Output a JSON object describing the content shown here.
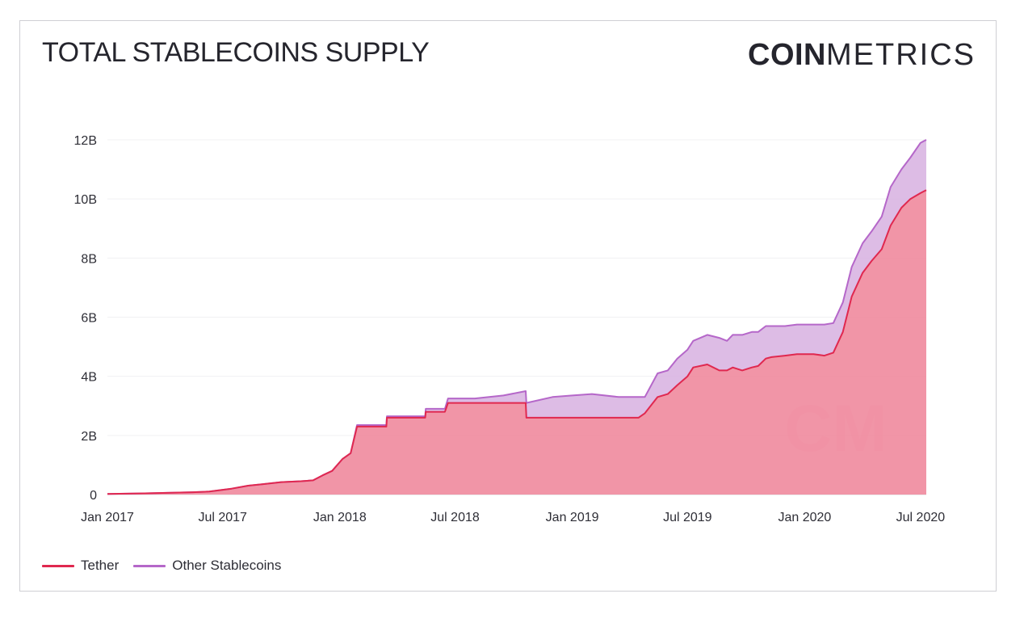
{
  "header": {
    "title": "TOTAL STABLECOINS SUPPLY",
    "brand_bold": "COIN",
    "brand_light": "METRICS",
    "watermark": "CM"
  },
  "colors": {
    "tether_line": "#e0284f",
    "tether_fill": "#f08ca0",
    "other_line": "#b567c9",
    "other_fill": "#d7b0e0",
    "grid": "#f0f0f3",
    "text": "#25252d"
  },
  "chart_data": {
    "type": "area",
    "stacked": true,
    "title": "TOTAL STABLECOINS SUPPLY",
    "xlabel": "",
    "ylabel": "",
    "xlim": [
      "2017-01-01",
      "2020-07-10"
    ],
    "ylim": [
      0,
      12000000000
    ],
    "grid": true,
    "legend_position": "bottom-left",
    "x_ticks": [
      "Jan 2017",
      "Jul 2017",
      "Jan 2018",
      "Jul 2018",
      "Jan 2019",
      "Jul 2019",
      "Jan 2020",
      "Jul 2020"
    ],
    "x_tick_dates": [
      "2017-01-01",
      "2017-07-01",
      "2018-01-01",
      "2018-07-01",
      "2019-01-01",
      "2019-07-01",
      "2020-01-01",
      "2020-07-01"
    ],
    "y_ticks": [
      0,
      2000000000,
      4000000000,
      6000000000,
      8000000000,
      10000000000,
      12000000000
    ],
    "y_tick_labels": [
      "0",
      "2B",
      "4B",
      "6B",
      "8B",
      "10B",
      "12B"
    ],
    "x": [
      "2017-01-01",
      "2017-03-01",
      "2017-05-15",
      "2017-06-10",
      "2017-07-15",
      "2017-08-10",
      "2017-09-01",
      "2017-10-01",
      "2017-11-01",
      "2017-11-20",
      "2017-12-05",
      "2017-12-20",
      "2018-01-05",
      "2018-01-18",
      "2018-01-28",
      "2018-02-15",
      "2018-03-15",
      "2018-03-16",
      "2018-05-15",
      "2018-05-16",
      "2018-06-15",
      "2018-06-20",
      "2018-08-01",
      "2018-09-15",
      "2018-10-20",
      "2018-10-21",
      "2018-12-01",
      "2019-01-01",
      "2019-02-01",
      "2019-03-15",
      "2019-04-01",
      "2019-04-15",
      "2019-04-25",
      "2019-05-15",
      "2019-05-31",
      "2019-06-15",
      "2019-07-01",
      "2019-07-10",
      "2019-08-01",
      "2019-08-20",
      "2019-09-01",
      "2019-09-10",
      "2019-09-25",
      "2019-10-10",
      "2019-10-20",
      "2019-11-01",
      "2019-11-10",
      "2019-12-01",
      "2019-12-20",
      "2020-01-15",
      "2020-02-01",
      "2020-02-15",
      "2020-03-01",
      "2020-03-15",
      "2020-04-01",
      "2020-04-15",
      "2020-05-01",
      "2020-05-15",
      "2020-06-01",
      "2020-06-15",
      "2020-07-01",
      "2020-07-10"
    ],
    "series": [
      {
        "name": "Tether",
        "values": [
          20000000,
          40000000,
          80000000,
          100000000,
          200000000,
          300000000,
          350000000,
          420000000,
          450000000,
          480000000,
          650000000,
          800000000,
          1200000000,
          1400000000,
          2300000000,
          2300000000,
          2300000000,
          2600000000,
          2600000000,
          2800000000,
          2800000000,
          3100000000,
          3100000000,
          3100000000,
          3100000000,
          2600000000,
          2600000000,
          2600000000,
          2600000000,
          2600000000,
          2600000000,
          2600000000,
          2750000000,
          3300000000,
          3400000000,
          3700000000,
          4000000000,
          4300000000,
          4400000000,
          4200000000,
          4200000000,
          4300000000,
          4200000000,
          4300000000,
          4350000000,
          4600000000,
          4650000000,
          4700000000,
          4750000000,
          4750000000,
          4700000000,
          4800000000,
          5500000000,
          6700000000,
          7500000000,
          7900000000,
          8300000000,
          9100000000,
          9700000000,
          10000000000,
          10200000000,
          10300000000
        ]
      },
      {
        "name": "Other Stablecoins",
        "values": [
          0,
          0,
          0,
          0,
          0,
          0,
          0,
          0,
          0,
          0,
          0,
          0,
          0,
          0,
          50000000,
          50000000,
          50000000,
          50000000,
          50000000,
          100000000,
          100000000,
          150000000,
          150000000,
          250000000,
          400000000,
          500000000,
          700000000,
          750000000,
          800000000,
          700000000,
          700000000,
          700000000,
          550000000,
          800000000,
          800000000,
          900000000,
          900000000,
          900000000,
          1000000000,
          1100000000,
          1000000000,
          1100000000,
          1200000000,
          1200000000,
          1150000000,
          1100000000,
          1050000000,
          1000000000,
          1000000000,
          1000000000,
          1050000000,
          1000000000,
          1000000000,
          1000000000,
          1000000000,
          1000000000,
          1100000000,
          1300000000,
          1300000000,
          1400000000,
          1700000000,
          1700000000
        ]
      }
    ]
  },
  "legend": {
    "items": [
      {
        "label": "Tether",
        "color": "#e0284f"
      },
      {
        "label": "Other Stablecoins",
        "color": "#b567c9"
      }
    ]
  }
}
